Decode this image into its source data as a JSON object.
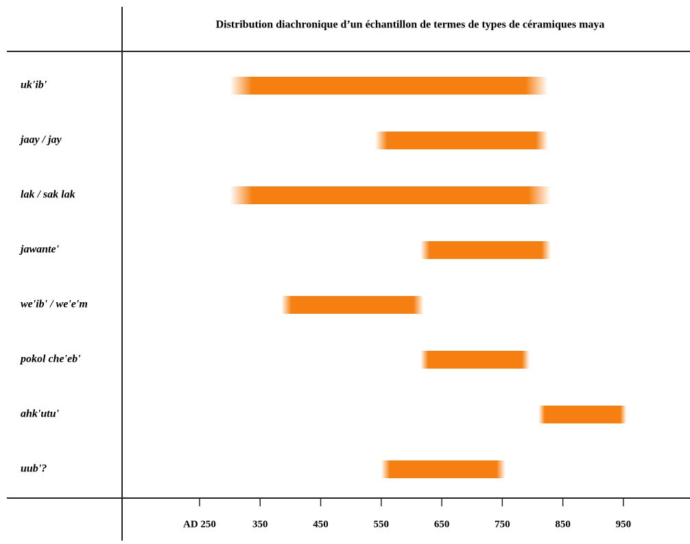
{
  "chart_data": {
    "type": "range",
    "title": "Distribution diachronique d’un échantillon de termes de types de céramiques maya",
    "categories": [
      "uk'ib'",
      "jaay / jay",
      "lak / sak lak",
      "jawante'",
      "we'ib' / we'e'm",
      "pokol che'eb'",
      "ahk'utu'",
      "uub'?"
    ],
    "starts": [
      300,
      540,
      300,
      615,
      385,
      615,
      810,
      550
    ],
    "ends": [
      825,
      825,
      830,
      830,
      620,
      795,
      955,
      755
    ],
    "color": "#f57f10",
    "xlim": [
      122,
      1060
    ],
    "xticks": [
      {
        "value": 250,
        "label": "AD 250"
      },
      350,
      450,
      550,
      650,
      750,
      850,
      950
    ]
  }
}
